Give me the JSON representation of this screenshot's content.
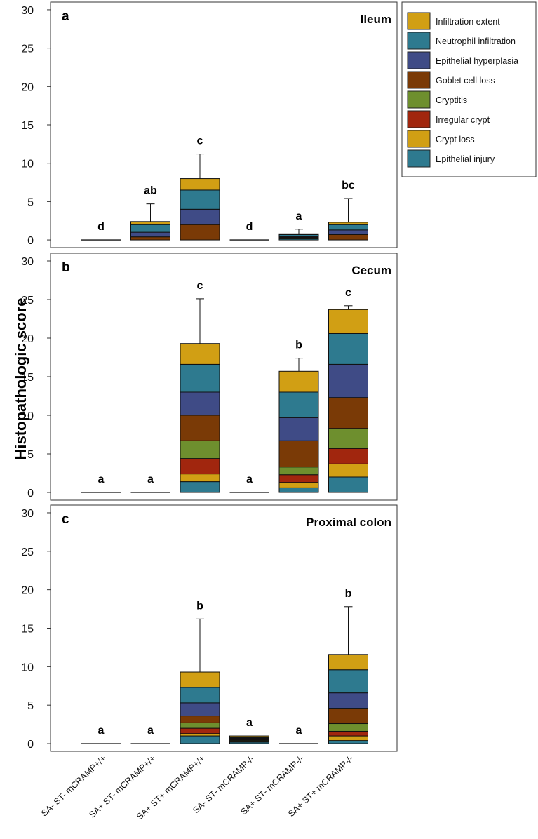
{
  "chart_data": {
    "type": "bar",
    "stacked": true,
    "ylabel": "Histopathologic score",
    "categories": [
      "SA- ST- mCRAMP+/+",
      "SA+ ST- mCRAMP+/+",
      "SA+ ST+ mCRAMP+/+",
      "SA- ST- mCRAMP-/-",
      "SA+ ST- mCRAMP-/-",
      "SA+ ST+ mCRAMP-/-"
    ],
    "legend": [
      {
        "name": "Infiltration extent",
        "color": "#D19F14"
      },
      {
        "name": "Neutrophil infiltration",
        "color": "#2E7A8F"
      },
      {
        "name": "Epithelial hyperplasia",
        "color": "#3F4B86"
      },
      {
        "name": "Goblet cell loss",
        "color": "#7A3A06"
      },
      {
        "name": "Cryptitis",
        "color": "#6E8F2E"
      },
      {
        "name": "Irregular crypt",
        "color": "#A1260E"
      },
      {
        "name": "Crypt loss",
        "color": "#D19F14"
      },
      {
        "name": "Epithelial injury",
        "color": "#2E7A8F"
      }
    ],
    "stack_order_bottom_to_top": [
      "Epithelial injury",
      "Crypt loss",
      "Irregular crypt",
      "Cryptitis",
      "Goblet cell loss",
      "Epithelial hyperplasia",
      "Neutrophil infiltration",
      "Infiltration extent"
    ],
    "yticks": [
      0,
      5,
      10,
      15,
      20,
      25,
      30
    ],
    "ylim": [
      -1,
      31
    ],
    "panels": [
      {
        "letter": "a",
        "title": "Ileum",
        "series_values": [
          [
            0,
            0,
            0,
            0,
            0,
            0,
            0,
            0
          ],
          [
            0,
            0,
            0,
            0,
            0.4,
            0.6,
            1.0,
            0.4
          ],
          [
            0,
            0,
            0,
            0,
            2.0,
            2.0,
            2.5,
            1.5
          ],
          [
            0,
            0,
            0,
            0,
            0,
            0,
            0,
            0
          ],
          [
            0.2,
            0.1,
            0,
            0,
            0.1,
            0.1,
            0.2,
            0.1
          ],
          [
            0,
            0,
            0,
            0,
            0.7,
            0.6,
            0.7,
            0.3
          ]
        ],
        "errors": [
          0,
          4.7,
          11.2,
          0,
          1.4,
          5.4
        ],
        "letters": [
          "d",
          "ab",
          "c",
          "d",
          "a",
          "bc"
        ]
      },
      {
        "letter": "b",
        "title": "Cecum",
        "series_values": [
          [
            0,
            0,
            0,
            0,
            0,
            0,
            0,
            0
          ],
          [
            0,
            0,
            0,
            0,
            0,
            0,
            0,
            0
          ],
          [
            1.4,
            1.0,
            2.0,
            2.3,
            3.3,
            3.0,
            3.6,
            2.7
          ],
          [
            0,
            0,
            0,
            0,
            0,
            0,
            0,
            0
          ],
          [
            0.6,
            0.7,
            1.0,
            1.0,
            3.4,
            3.0,
            3.3,
            2.7
          ],
          [
            2.0,
            1.7,
            2.0,
            2.6,
            4.0,
            4.3,
            4.0,
            3.1
          ]
        ],
        "errors": [
          0,
          0,
          25.1,
          0,
          17.4,
          24.2
        ],
        "letters": [
          "a",
          "a",
          "c",
          "a",
          "b",
          "c"
        ]
      },
      {
        "letter": "c",
        "title": "Proximal colon",
        "series_values": [
          [
            0,
            0,
            0,
            0,
            0,
            0,
            0,
            0
          ],
          [
            0,
            0,
            0,
            0,
            0,
            0,
            0,
            0
          ],
          [
            1.0,
            0.3,
            0.7,
            0.7,
            0.9,
            1.7,
            2.0,
            2.0
          ],
          [
            0.2,
            0.1,
            0.1,
            0.1,
            0.1,
            0.1,
            0.1,
            0.2
          ],
          [
            0,
            0,
            0,
            0,
            0,
            0,
            0,
            0
          ],
          [
            0.4,
            0.6,
            0.6,
            1.0,
            2.0,
            2.0,
            3.0,
            2.0
          ]
        ],
        "errors": [
          0,
          0,
          16.2,
          0,
          0,
          17.8
        ],
        "letters": [
          "a",
          "a",
          "b",
          "a",
          "a",
          "b"
        ]
      }
    ]
  }
}
